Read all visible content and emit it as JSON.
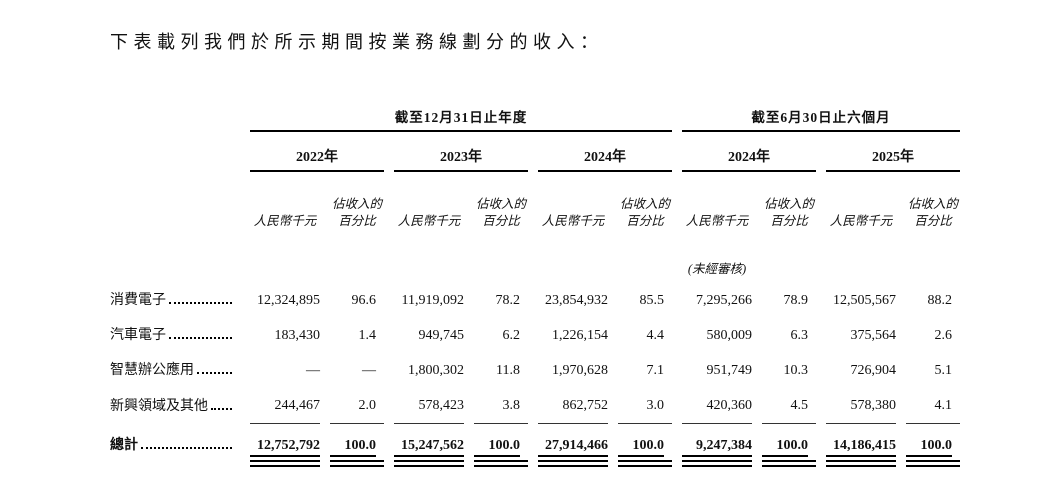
{
  "page": {
    "title": "下表載列我們於所示期間按業務線劃分的收入："
  },
  "table": {
    "sections": [
      {
        "label": "截至12月31日止年度"
      },
      {
        "label": "截至6月30日止六個月"
      }
    ],
    "years": [
      "2022年",
      "2023年",
      "2024年",
      "2024年",
      "2025年"
    ],
    "col_headers": {
      "amount": "人民幣千元",
      "percent_line1": "佔收入的",
      "percent_line2": "百分比"
    },
    "unaudited_note": "(未經審核)",
    "rows": [
      {
        "label": "消費電子",
        "values": [
          "12,324,895",
          "96.6",
          "11,919,092",
          "78.2",
          "23,854,932",
          "85.5",
          "7,295,266",
          "78.9",
          "12,505,567",
          "88.2"
        ]
      },
      {
        "label": "汽車電子",
        "values": [
          "183,430",
          "1.4",
          "949,745",
          "6.2",
          "1,226,154",
          "4.4",
          "580,009",
          "6.3",
          "375,564",
          "2.6"
        ]
      },
      {
        "label": "智慧辦公應用",
        "values": [
          "—",
          "—",
          "1,800,302",
          "11.8",
          "1,970,628",
          "7.1",
          "951,749",
          "10.3",
          "726,904",
          "5.1"
        ]
      },
      {
        "label": "新興領域及其他",
        "values": [
          "244,467",
          "2.0",
          "578,423",
          "3.8",
          "862,752",
          "3.0",
          "420,360",
          "4.5",
          "578,380",
          "4.1"
        ]
      }
    ],
    "total": {
      "label": "總計",
      "values": [
        "12,752,792",
        "100.0",
        "15,247,562",
        "100.0",
        "27,914,466",
        "100.0",
        "9,247,384",
        "100.0",
        "14,186,415",
        "100.0"
      ]
    }
  }
}
